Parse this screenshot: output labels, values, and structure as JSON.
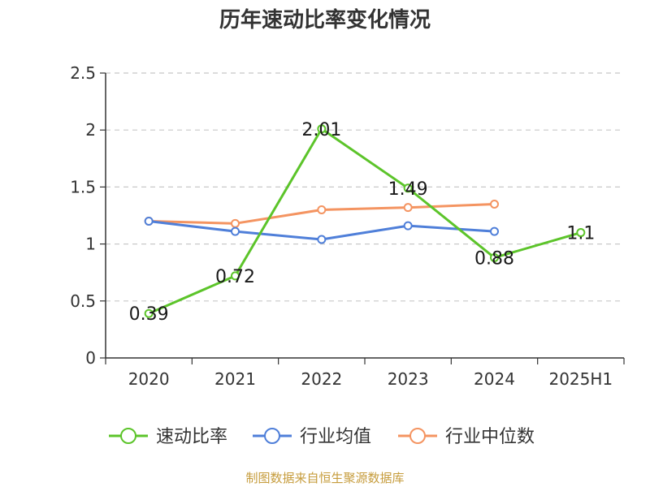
{
  "title": "历年速动比率变化情况",
  "source": "制图数据来自恒生聚源数据库",
  "chart_data": {
    "type": "line",
    "title": "历年速动比率变化情况",
    "categories": [
      "2020",
      "2021",
      "2022",
      "2023",
      "2024",
      "2025H1"
    ],
    "ylim": [
      0,
      2.5
    ],
    "yticks": [
      "0",
      "0.5",
      "1",
      "1.5",
      "2",
      "2.5"
    ],
    "grid": true,
    "legend_position": "bottom",
    "series": [
      {
        "name": "速动比率",
        "color": "#5cc42a",
        "values": [
          0.39,
          0.72,
          2.01,
          1.49,
          0.88,
          1.1
        ],
        "labels": [
          "0.39",
          "0.72",
          "2.01",
          "1.49",
          "0.88",
          "1.1"
        ]
      },
      {
        "name": "行业均值",
        "color": "#4f7fd9",
        "values": [
          1.2,
          1.11,
          1.04,
          1.16,
          1.11,
          null
        ]
      },
      {
        "name": "行业中位数",
        "color": "#f49461",
        "values": [
          1.2,
          1.18,
          1.3,
          1.32,
          1.35,
          null
        ]
      }
    ]
  }
}
